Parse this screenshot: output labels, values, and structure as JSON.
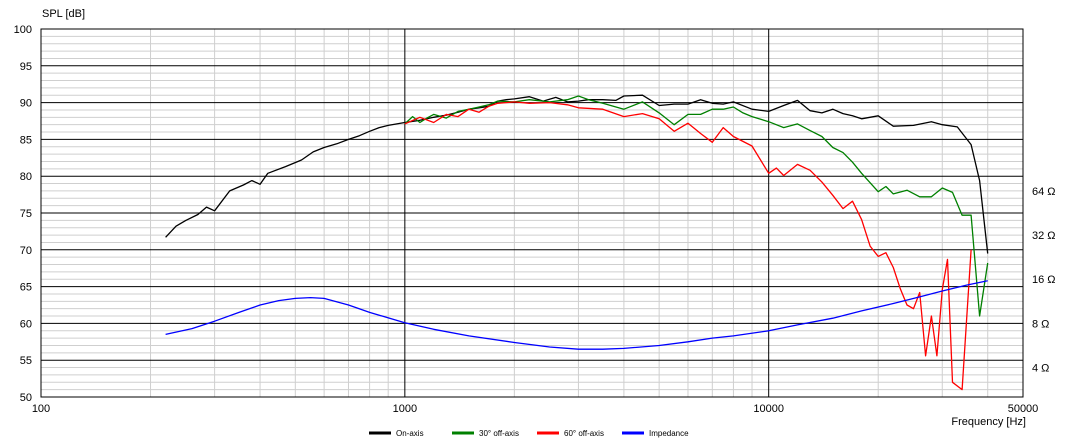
{
  "chart_data": {
    "type": "line",
    "ylabel": "SPL [dB]",
    "xlabel": "Frequency [Hz]",
    "x_scale": "log",
    "xlim": [
      100,
      50000
    ],
    "ylim": [
      50,
      100
    ],
    "x_ticks": [
      {
        "value": 100,
        "label": "100"
      },
      {
        "value": 1000,
        "label": "1000"
      },
      {
        "value": 10000,
        "label": "10000"
      },
      {
        "value": 50000,
        "label": "50000"
      }
    ],
    "y_ticks": [
      50,
      55,
      60,
      65,
      70,
      75,
      80,
      85,
      90,
      95,
      100
    ],
    "right_axis": {
      "unit": "ohm",
      "ticks": [
        {
          "label": "4 Ω",
          "spl": 54
        },
        {
          "label": "8 Ω",
          "spl": 60
        },
        {
          "label": "16 Ω",
          "spl": 66
        },
        {
          "label": "32 Ω",
          "spl": 72
        },
        {
          "label": "64 Ω",
          "spl": 78
        }
      ]
    },
    "grid": true,
    "legend_position": "bottom-center",
    "series": [
      {
        "name": "On-axis",
        "color": "#000000",
        "points": [
          [
            220,
            71.7
          ],
          [
            235,
            73.2
          ],
          [
            250,
            74
          ],
          [
            270,
            74.8
          ],
          [
            285,
            75.8
          ],
          [
            300,
            75.3
          ],
          [
            330,
            78
          ],
          [
            360,
            78.8
          ],
          [
            380,
            79.4
          ],
          [
            400,
            78.9
          ],
          [
            420,
            80.4
          ],
          [
            470,
            81.3
          ],
          [
            520,
            82.2
          ],
          [
            560,
            83.3
          ],
          [
            600,
            83.9
          ],
          [
            650,
            84.4
          ],
          [
            700,
            85
          ],
          [
            750,
            85.5
          ],
          [
            800,
            86.1
          ],
          [
            850,
            86.6
          ],
          [
            900,
            86.9
          ],
          [
            1000,
            87.3
          ],
          [
            1100,
            87.6
          ],
          [
            1200,
            88
          ],
          [
            1300,
            88.3
          ],
          [
            1400,
            88.7
          ],
          [
            1500,
            89.1
          ],
          [
            1600,
            89.3
          ],
          [
            1700,
            89.5
          ],
          [
            1800,
            90.2
          ],
          [
            1900,
            90.4
          ],
          [
            2000,
            90.5
          ],
          [
            2200,
            90.8
          ],
          [
            2400,
            90.2
          ],
          [
            2600,
            90.7
          ],
          [
            2800,
            90.1
          ],
          [
            3000,
            90.2
          ],
          [
            3200,
            90.4
          ],
          [
            3500,
            90.4
          ],
          [
            3800,
            90.3
          ],
          [
            4000,
            90.9
          ],
          [
            4500,
            91
          ],
          [
            5000,
            89.6
          ],
          [
            5500,
            89.8
          ],
          [
            6000,
            89.8
          ],
          [
            6500,
            90.4
          ],
          [
            7000,
            89.9
          ],
          [
            7500,
            89.8
          ],
          [
            8000,
            90.1
          ],
          [
            9000,
            89.1
          ],
          [
            10000,
            88.8
          ],
          [
            11000,
            89.6
          ],
          [
            12000,
            90.3
          ],
          [
            13000,
            88.9
          ],
          [
            14000,
            88.6
          ],
          [
            15000,
            89.1
          ],
          [
            16000,
            88.5
          ],
          [
            17000,
            88.2
          ],
          [
            18000,
            87.8
          ],
          [
            20000,
            88.2
          ],
          [
            22000,
            86.8
          ],
          [
            25000,
            86.9
          ],
          [
            28000,
            87.4
          ],
          [
            30000,
            87
          ],
          [
            33000,
            86.7
          ],
          [
            36000,
            84.3
          ],
          [
            38000,
            79.4
          ],
          [
            40000,
            69.5
          ]
        ]
      },
      {
        "name": "30° off-axis",
        "color": "#008000",
        "points": [
          [
            1000,
            87.1
          ],
          [
            1050,
            88.1
          ],
          [
            1100,
            87.3
          ],
          [
            1150,
            87.9
          ],
          [
            1200,
            88.4
          ],
          [
            1300,
            87.9
          ],
          [
            1400,
            88.8
          ],
          [
            1500,
            89.1
          ],
          [
            1600,
            89.4
          ],
          [
            1700,
            89.7
          ],
          [
            1800,
            90.2
          ],
          [
            2000,
            90.1
          ],
          [
            2200,
            90.4
          ],
          [
            2500,
            90.1
          ],
          [
            2800,
            90.4
          ],
          [
            3000,
            90.9
          ],
          [
            3200,
            90.4
          ],
          [
            3500,
            89.9
          ],
          [
            4000,
            89.1
          ],
          [
            4500,
            90.1
          ],
          [
            5000,
            88.6
          ],
          [
            5500,
            87
          ],
          [
            6000,
            88.4
          ],
          [
            6500,
            88.4
          ],
          [
            7000,
            89.1
          ],
          [
            7500,
            89.1
          ],
          [
            8000,
            89.4
          ],
          [
            8500,
            88.6
          ],
          [
            9000,
            88.1
          ],
          [
            10000,
            87.4
          ],
          [
            11000,
            86.6
          ],
          [
            12000,
            87.1
          ],
          [
            13000,
            86.2
          ],
          [
            14000,
            85.4
          ],
          [
            15000,
            83.9
          ],
          [
            16000,
            83.2
          ],
          [
            17000,
            81.9
          ],
          [
            18000,
            80.4
          ],
          [
            20000,
            77.9
          ],
          [
            21000,
            78.6
          ],
          [
            22000,
            77.6
          ],
          [
            24000,
            78.1
          ],
          [
            26000,
            77.2
          ],
          [
            28000,
            77.2
          ],
          [
            30000,
            78.4
          ],
          [
            32000,
            77.8
          ],
          [
            34000,
            74.7
          ],
          [
            36000,
            74.7
          ],
          [
            38000,
            61
          ],
          [
            40000,
            68.2
          ]
        ]
      },
      {
        "name": "60° off-axis",
        "color": "#ff0000",
        "points": [
          [
            1000,
            87.1
          ],
          [
            1100,
            88
          ],
          [
            1200,
            87.3
          ],
          [
            1300,
            88.4
          ],
          [
            1400,
            88.1
          ],
          [
            1500,
            89.1
          ],
          [
            1600,
            88.7
          ],
          [
            1700,
            89.5
          ],
          [
            1800,
            89.9
          ],
          [
            2000,
            90.1
          ],
          [
            2200,
            89.9
          ],
          [
            2500,
            90
          ],
          [
            2800,
            89.7
          ],
          [
            3000,
            89.3
          ],
          [
            3500,
            89.1
          ],
          [
            4000,
            88.1
          ],
          [
            4500,
            88.5
          ],
          [
            5000,
            87.8
          ],
          [
            5500,
            86.1
          ],
          [
            6000,
            87.2
          ],
          [
            6500,
            85.8
          ],
          [
            7000,
            84.6
          ],
          [
            7500,
            86.6
          ],
          [
            8000,
            85.4
          ],
          [
            9000,
            84.1
          ],
          [
            10000,
            80.4
          ],
          [
            10500,
            81.1
          ],
          [
            11000,
            80.1
          ],
          [
            12000,
            81.6
          ],
          [
            13000,
            80.8
          ],
          [
            14000,
            79.2
          ],
          [
            15000,
            77.4
          ],
          [
            16000,
            75.6
          ],
          [
            17000,
            76.6
          ],
          [
            18000,
            74.1
          ],
          [
            19000,
            70.5
          ],
          [
            20000,
            69.1
          ],
          [
            21000,
            69.6
          ],
          [
            22000,
            67.6
          ],
          [
            23000,
            64.7
          ],
          [
            24000,
            62.5
          ],
          [
            25000,
            62
          ],
          [
            26000,
            64.2
          ],
          [
            27000,
            55.6
          ],
          [
            28000,
            61
          ],
          [
            29000,
            55.6
          ],
          [
            30000,
            64.6
          ],
          [
            31000,
            68.7
          ],
          [
            32000,
            52
          ],
          [
            34000,
            51
          ],
          [
            36000,
            70
          ]
        ]
      },
      {
        "name": "Impedance",
        "color": "#0000ff",
        "points": [
          [
            220,
            58.5
          ],
          [
            260,
            59.3
          ],
          [
            300,
            60.3
          ],
          [
            350,
            61.5
          ],
          [
            400,
            62.5
          ],
          [
            450,
            63.1
          ],
          [
            500,
            63.4
          ],
          [
            550,
            63.5
          ],
          [
            600,
            63.4
          ],
          [
            700,
            62.5
          ],
          [
            800,
            61.5
          ],
          [
            1000,
            60.1
          ],
          [
            1200,
            59.2
          ],
          [
            1500,
            58.3
          ],
          [
            2000,
            57.4
          ],
          [
            2500,
            56.8
          ],
          [
            3000,
            56.5
          ],
          [
            3500,
            56.5
          ],
          [
            4000,
            56.6
          ],
          [
            5000,
            57
          ],
          [
            6000,
            57.5
          ],
          [
            7000,
            58
          ],
          [
            8000,
            58.3
          ],
          [
            10000,
            59
          ],
          [
            12000,
            59.8
          ],
          [
            15000,
            60.7
          ],
          [
            18000,
            61.7
          ],
          [
            22000,
            62.7
          ],
          [
            26000,
            63.6
          ],
          [
            30000,
            64.4
          ],
          [
            35000,
            65.2
          ],
          [
            40000,
            65.8
          ]
        ]
      }
    ]
  }
}
